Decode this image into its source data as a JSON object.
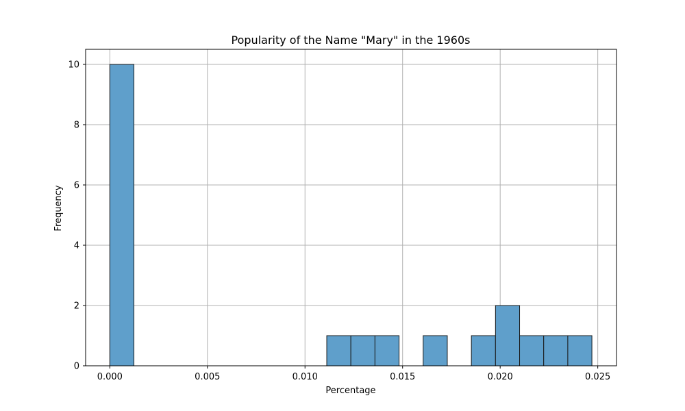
{
  "chart_data": {
    "type": "bar",
    "subtype": "histogram",
    "title": "Popularity of the Name \"Mary\" in the 1960s",
    "xlabel": "Percentage",
    "ylabel": "Frequency",
    "xlim": [
      -0.00124,
      0.02596
    ],
    "ylim": [
      0,
      10.5
    ],
    "xticks": [
      "0.000",
      "0.005",
      "0.010",
      "0.015",
      "0.020",
      "0.025"
    ],
    "yticks": [
      "0",
      "2",
      "4",
      "6",
      "8",
      "10"
    ],
    "grid": true,
    "legend": "none",
    "bin_width": 0.001235,
    "bins": [
      {
        "start": 0.0,
        "count": 10
      },
      {
        "start": 0.011115,
        "count": 1
      },
      {
        "start": 0.01235,
        "count": 1
      },
      {
        "start": 0.013585,
        "count": 1
      },
      {
        "start": 0.016055,
        "count": 1
      },
      {
        "start": 0.018525,
        "count": 1
      },
      {
        "start": 0.01976,
        "count": 2
      },
      {
        "start": 0.020995,
        "count": 1
      },
      {
        "start": 0.02223,
        "count": 1
      },
      {
        "start": 0.023465,
        "count": 1
      }
    ],
    "colors": {
      "bar_fill": "#5f9fcb",
      "bar_edge": "#1a1a1a",
      "grid": "#b0b0b0"
    }
  }
}
